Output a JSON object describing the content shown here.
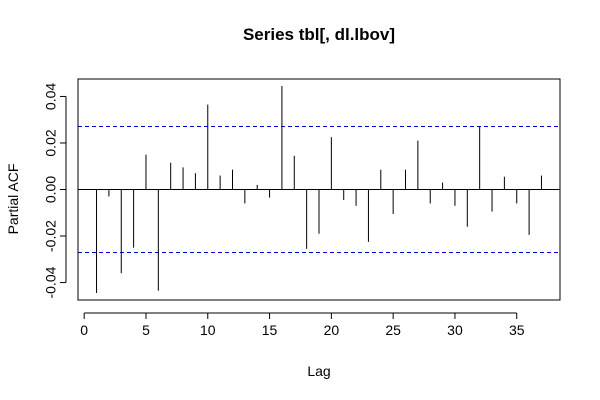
{
  "chart_data": {
    "type": "bar",
    "title": "Series  tbl[, dl.lbov]",
    "xlabel": "Lag",
    "ylabel": "Partial ACF",
    "xlim": [
      -0.5,
      38.5
    ],
    "ylim": [
      -0.0475,
      0.0475
    ],
    "x_ticks": [
      0,
      5,
      10,
      15,
      20,
      25,
      30,
      35
    ],
    "x_tick_labels": [
      "0",
      "5",
      "10",
      "15",
      "20",
      "25",
      "30",
      "35"
    ],
    "y_ticks": [
      -0.04,
      -0.02,
      0.0,
      0.02,
      0.04
    ],
    "y_tick_labels": [
      "-0.04",
      "-0.02",
      "0.00",
      "0.02",
      "0.04"
    ],
    "lags": [
      1,
      2,
      3,
      4,
      5,
      6,
      7,
      8,
      9,
      10,
      11,
      12,
      13,
      14,
      15,
      16,
      17,
      18,
      19,
      20,
      21,
      22,
      23,
      24,
      25,
      26,
      27,
      28,
      29,
      30,
      31,
      32,
      33,
      34,
      35,
      36,
      37
    ],
    "values": [
      -0.0445,
      -0.003,
      -0.036,
      -0.025,
      0.015,
      -0.0435,
      0.0115,
      0.0095,
      0.007,
      0.0365,
      0.006,
      0.0085,
      -0.006,
      0.002,
      -0.0035,
      0.0445,
      0.0145,
      -0.0255,
      -0.019,
      0.0225,
      -0.0045,
      -0.007,
      -0.0225,
      0.0085,
      -0.0105,
      0.0085,
      0.021,
      -0.006,
      0.003,
      -0.007,
      -0.016,
      0.027,
      -0.0095,
      0.0055,
      -0.006,
      -0.0195,
      0.006
    ],
    "ci_upper": 0.0271,
    "ci_lower": -0.0271,
    "colors": {
      "bars": "#000000",
      "ci_lines": "#0000cc",
      "zero_line": "#000000",
      "frame": "#000000"
    }
  }
}
